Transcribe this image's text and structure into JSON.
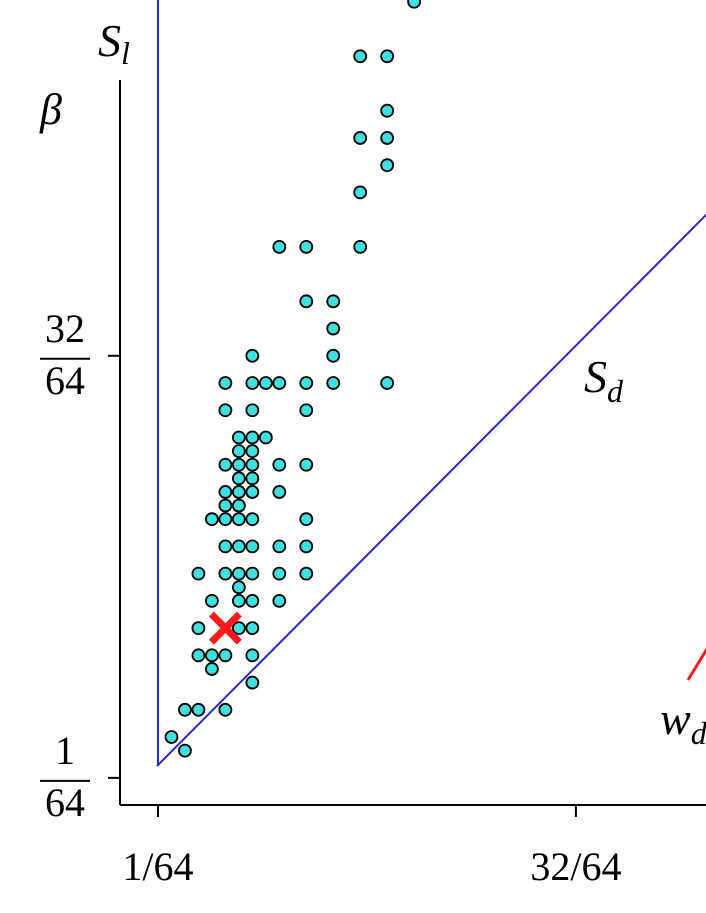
{
  "chart_data": {
    "type": "scatter",
    "y_label": "β",
    "line_labels": {
      "left": "S",
      "left_sub": "l",
      "diag": "S",
      "diag_sub": "d",
      "w": "w",
      "w_sub": "d"
    },
    "xlim": [
      -0.0284,
      0.6508
    ],
    "ylim": [
      -0.0155,
      0.9083
    ],
    "xticks": [
      {
        "value": 0.015625,
        "label": "1/64"
      },
      {
        "value": 0.5,
        "label": "32/64"
      }
    ],
    "yticks": [
      {
        "value": 0.015625,
        "label": [
          "1",
          "64"
        ]
      },
      {
        "value": 0.5,
        "label": [
          "32",
          "64"
        ]
      }
    ],
    "series": [
      {
        "color": "#3fe0e0",
        "x": [
          0.03125,
          0.046875,
          0.046875,
          0.0625,
          0.09375,
          0.125,
          0.078125,
          0.0625,
          0.078125,
          0.09375,
          0.125,
          0.0625,
          0.109375,
          0.125,
          0.078125,
          0.109375,
          0.125,
          0.15625,
          0.109375,
          0.0625,
          0.09375,
          0.109375,
          0.125,
          0.15625,
          0.1875,
          0.09375,
          0.109375,
          0.125,
          0.15625,
          0.1875,
          0.078125,
          0.09375,
          0.109375,
          0.125,
          0.1875,
          0.09375,
          0.109375,
          0.09375,
          0.109375,
          0.125,
          0.15625,
          0.109375,
          0.125,
          0.09375,
          0.109375,
          0.125,
          0.15625,
          0.1875,
          0.109375,
          0.125,
          0.109375,
          0.125,
          0.140625,
          0.09375,
          0.125,
          0.1875,
          0.09375,
          0.125,
          0.140625,
          0.15625,
          0.1875,
          0.21875,
          0.28125,
          0.125,
          0.21875,
          0.21875,
          0.1875,
          0.21875,
          0.15625,
          0.1875,
          0.25,
          0.25,
          0.28125,
          0.25,
          0.28125,
          0.28125,
          0.25,
          0.28125,
          0.3125
        ],
        "y": [
          0.0625,
          0.046875,
          0.09375,
          0.09375,
          0.09375,
          0.125,
          0.140625,
          0.15625,
          0.15625,
          0.15625,
          0.15625,
          0.1875,
          0.1875,
          0.1875,
          0.21875,
          0.21875,
          0.21875,
          0.21875,
          0.234375,
          0.25,
          0.25,
          0.25,
          0.25,
          0.25,
          0.25,
          0.28125,
          0.28125,
          0.28125,
          0.28125,
          0.28125,
          0.3125,
          0.3125,
          0.3125,
          0.3125,
          0.3125,
          0.328125,
          0.328125,
          0.34375,
          0.34375,
          0.34375,
          0.34375,
          0.359375,
          0.359375,
          0.375,
          0.375,
          0.375,
          0.375,
          0.375,
          0.390625,
          0.390625,
          0.40625,
          0.40625,
          0.40625,
          0.4375,
          0.4375,
          0.4375,
          0.46875,
          0.46875,
          0.46875,
          0.46875,
          0.46875,
          0.46875,
          0.46875,
          0.5,
          0.5,
          0.53125,
          0.5625,
          0.5625,
          0.625,
          0.625,
          0.625,
          0.6875,
          0.71875,
          0.75,
          0.75,
          0.78125,
          0.84375,
          0.84375,
          0.90625
        ]
      }
    ],
    "marker": {
      "x": 0.09375,
      "y": 0.1875,
      "color": "#ff1a1a"
    }
  }
}
